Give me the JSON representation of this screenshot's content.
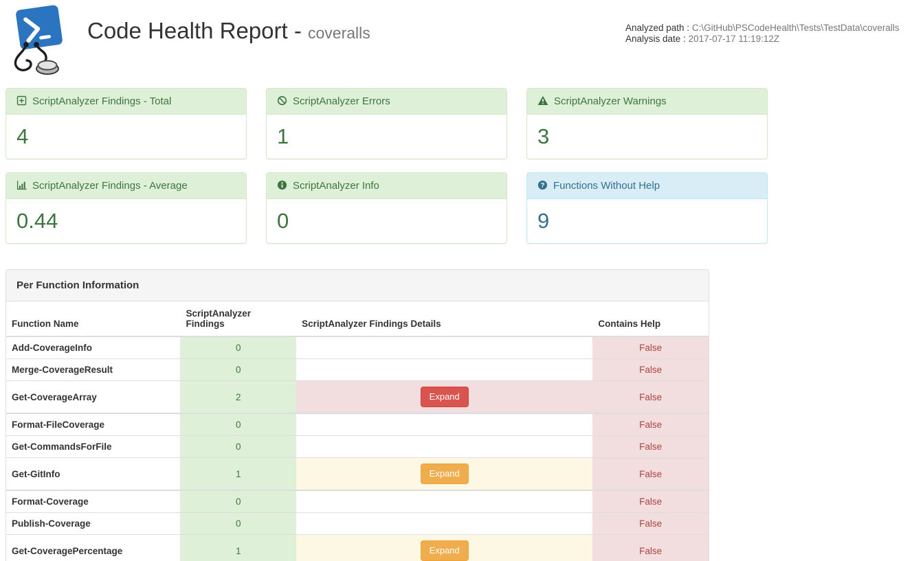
{
  "header": {
    "title": "Code Health Report -",
    "subtitle": "coveralls",
    "analyzed_path_label": "Analyzed path :",
    "analyzed_path": "C:\\GitHub\\PSCodeHealth\\Tests\\TestData\\coveralls",
    "analysis_date_label": "Analysis date :",
    "analysis_date": "2017-07-17 11:19:12Z"
  },
  "cards": [
    {
      "id": "findings-total",
      "icon": "plus-square-icon",
      "title": "ScriptAnalyzer Findings - Total",
      "value": "4",
      "style": "success"
    },
    {
      "id": "errors",
      "icon": "ban-icon",
      "title": "ScriptAnalyzer Errors",
      "value": "1",
      "style": "success"
    },
    {
      "id": "warnings",
      "icon": "warning-triangle-icon",
      "title": "ScriptAnalyzer Warnings",
      "value": "3",
      "style": "success"
    },
    {
      "id": "findings-average",
      "icon": "bar-chart-icon",
      "title": "ScriptAnalyzer Findings - Average",
      "value": "0.44",
      "style": "success"
    },
    {
      "id": "info",
      "icon": "info-circle-icon",
      "title": "ScriptAnalyzer Info",
      "value": "0",
      "style": "success"
    },
    {
      "id": "functions-without-help",
      "icon": "question-circle-icon",
      "title": "Functions Without Help",
      "value": "9",
      "style": "info"
    }
  ],
  "table": {
    "panel_title": "Per Function Information",
    "columns": [
      "Function Name",
      "ScriptAnalyzer Findings",
      "ScriptAnalyzer Findings Details",
      "Contains Help"
    ],
    "expand_label": "Expand",
    "rows": [
      {
        "function": "Add-CoverageInfo",
        "findings": "0",
        "details_style": "none",
        "contains_help": "False"
      },
      {
        "function": "Merge-CoverageResult",
        "findings": "0",
        "details_style": "none",
        "contains_help": "False"
      },
      {
        "function": "Get-CoverageArray",
        "findings": "2",
        "details_style": "danger",
        "contains_help": "False"
      },
      {
        "function": "Format-FileCoverage",
        "findings": "0",
        "details_style": "none",
        "contains_help": "False"
      },
      {
        "function": "Get-CommandsForFile",
        "findings": "0",
        "details_style": "none",
        "contains_help": "False"
      },
      {
        "function": "Get-GitInfo",
        "findings": "1",
        "details_style": "warning",
        "contains_help": "False"
      },
      {
        "function": "Format-Coverage",
        "findings": "0",
        "details_style": "none",
        "contains_help": "False"
      },
      {
        "function": "Publish-Coverage",
        "findings": "0",
        "details_style": "none",
        "contains_help": "False"
      },
      {
        "function": "Get-CoveragePercentage",
        "findings": "1",
        "details_style": "warning",
        "contains_help": "False"
      }
    ]
  },
  "colors": {
    "success_bg": "#dff0d8",
    "success_border": "#d6e9c6",
    "success_text": "#3c763d",
    "info_bg": "#d9edf7",
    "info_border": "#bce8f1",
    "info_text": "#31708f",
    "danger_bg": "#f2dede",
    "danger_text": "#a94442",
    "warning_bg": "#fcf8e3",
    "btn_danger": "#d9534f",
    "btn_warning": "#f0ad4e",
    "powershell_blue": "#2b74c0"
  }
}
